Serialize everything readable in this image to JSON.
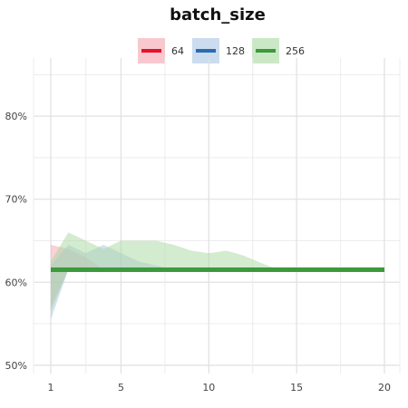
{
  "chart_data": {
    "type": "line",
    "title": "batch_size",
    "xlabel": "",
    "ylabel": "",
    "x_ticks": [
      1,
      5,
      10,
      15,
      20
    ],
    "y_ticks": [
      "50%",
      "60%",
      "70%",
      "80%"
    ],
    "xlim": [
      1,
      20
    ],
    "ylim": [
      49,
      87
    ],
    "grid": true,
    "legend_position": "top-center",
    "series": [
      {
        "name": "64",
        "color": "#e8112d",
        "band_color": "#f4a3ad",
        "x": [
          1,
          20
        ],
        "y": [
          61.5,
          61.5
        ],
        "band_x": [
          1,
          2,
          3,
          4,
          20
        ],
        "band_low": [
          57,
          61.5,
          61.5,
          61.5,
          61.5
        ],
        "band_high": [
          64.5,
          64,
          63,
          61.5,
          61.5
        ]
      },
      {
        "name": "128",
        "color": "#2b6cb0",
        "band_color": "#a9c4e4",
        "x": [
          1,
          20
        ],
        "y": [
          61.5,
          61.5
        ],
        "band_x": [
          1,
          2,
          3,
          4,
          5,
          6,
          7,
          8,
          20
        ],
        "band_low": [
          55.5,
          61.5,
          61.5,
          61.5,
          61.5,
          61.5,
          61.5,
          61.5,
          61.5
        ],
        "band_high": [
          62,
          64.5,
          63.5,
          64.5,
          63.5,
          62.5,
          62,
          61.5,
          61.5
        ]
      },
      {
        "name": "256",
        "color": "#3c9a3c",
        "band_color": "#a8d8a0",
        "x": [
          1,
          20
        ],
        "y": [
          61.5,
          61.5
        ],
        "band_x": [
          1,
          2,
          3,
          4,
          5,
          6,
          7,
          8,
          9,
          10,
          11,
          12,
          13,
          14,
          20
        ],
        "band_low": [
          56.5,
          61.5,
          61.5,
          61.5,
          61.5,
          61.5,
          61.5,
          61.5,
          61.5,
          61.5,
          61.5,
          61.5,
          61.5,
          61.5,
          61.5
        ],
        "band_high": [
          62.5,
          66,
          65,
          64,
          65,
          65,
          65,
          64.5,
          63.8,
          63.5,
          63.8,
          63.2,
          62.3,
          61.5,
          61.5
        ]
      }
    ]
  }
}
